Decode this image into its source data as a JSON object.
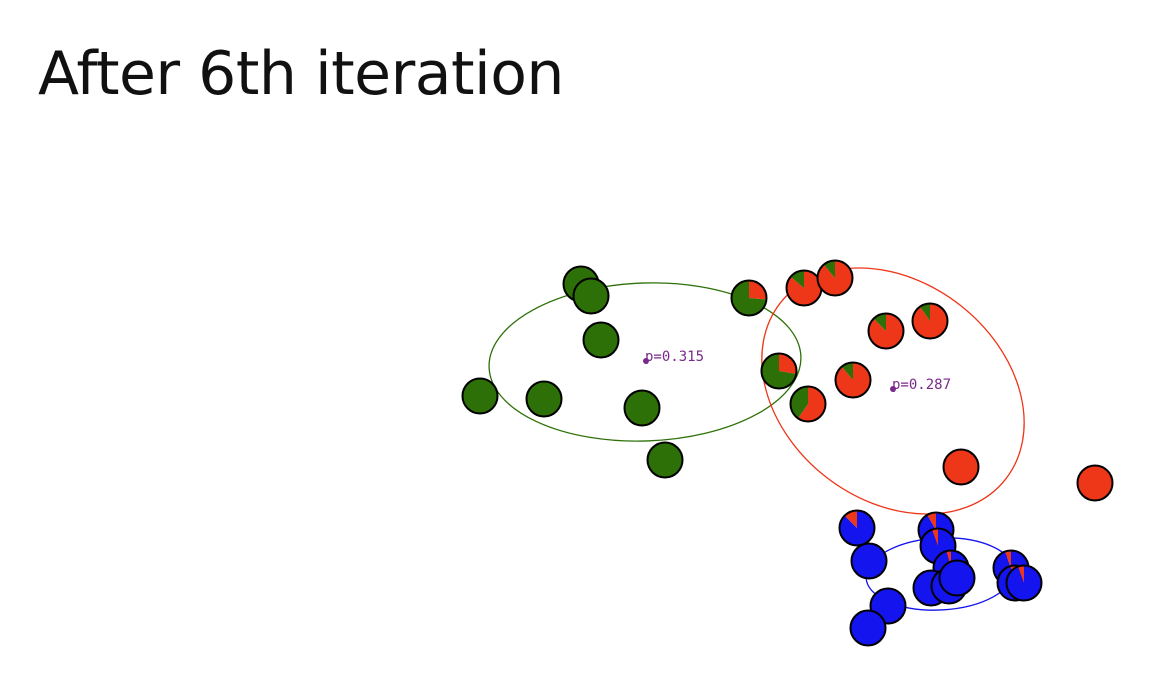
{
  "slide": {
    "title": "After 6th iteration"
  },
  "colors": {
    "green": "#2e7008",
    "red": "#ee3618",
    "blue": "#1414ee",
    "label": "#7a2a8a",
    "outline": "#000000"
  },
  "clusters": [
    {
      "id": "green",
      "color": "#2e7008",
      "label": "p=0.315"
    },
    {
      "id": "red",
      "color": "#ee3618",
      "label": "p=0.287"
    },
    {
      "id": "blue",
      "color": "#1414ee",
      "label": ""
    }
  ]
}
